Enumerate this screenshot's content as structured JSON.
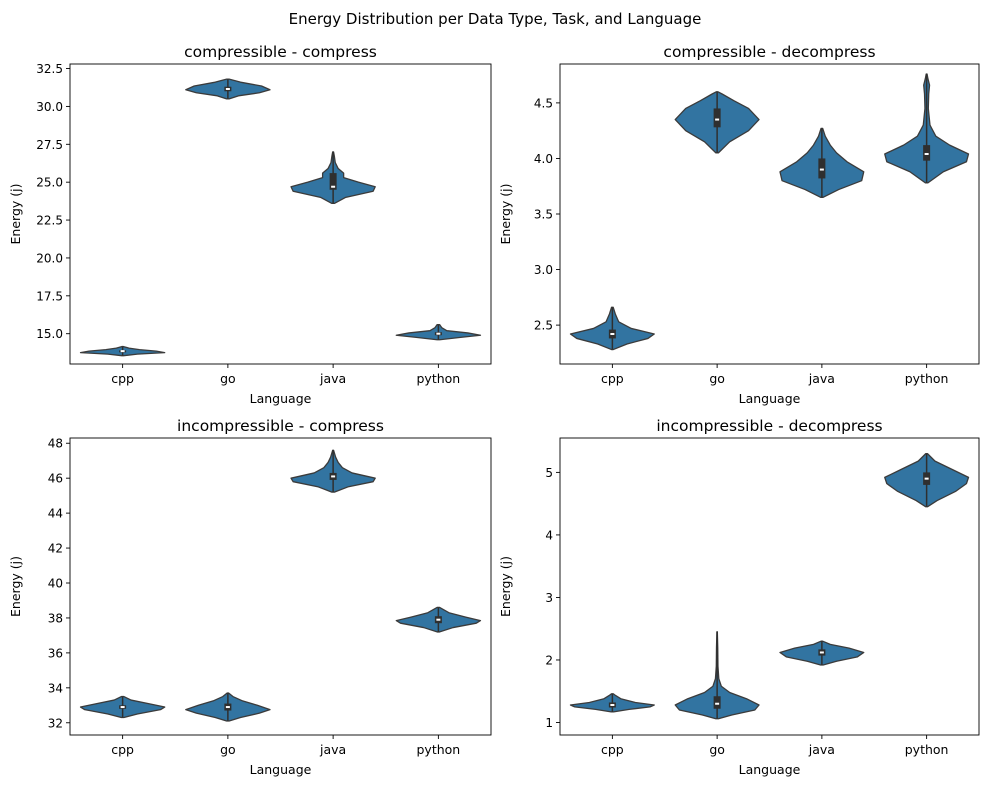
{
  "figure_title": "Energy Distribution per Data Type, Task, and Language",
  "colors": {
    "violin": "#3274a1",
    "edge": "#3b3b3b",
    "box": "#2f2f2f",
    "median": "#ffffff"
  },
  "chart_data": [
    {
      "type": "violin",
      "title": "compressible - compress",
      "xlabel": "Language",
      "ylabel": "Energy (j)",
      "categories": [
        "cpp",
        "go",
        "java",
        "python"
      ],
      "ylim": [
        13.0,
        32.8
      ],
      "yticks": [
        15.0,
        17.5,
        20.0,
        22.5,
        25.0,
        27.5,
        30.0,
        32.5
      ],
      "tick_decimals": 1,
      "series": [
        {
          "name": "cpp",
          "min": 13.55,
          "max": 14.15,
          "median": 13.85,
          "q1": 13.8,
          "q3": 13.9,
          "profile": [
            [
              13.55,
              0.02
            ],
            [
              13.65,
              0.35
            ],
            [
              13.75,
              1.0
            ],
            [
              13.85,
              0.8
            ],
            [
              13.95,
              0.4
            ],
            [
              14.05,
              0.15
            ],
            [
              14.15,
              0.02
            ]
          ]
        },
        {
          "name": "go",
          "min": 30.5,
          "max": 31.8,
          "median": 31.15,
          "q1": 31.0,
          "q3": 31.3,
          "profile": [
            [
              30.5,
              0.03
            ],
            [
              30.7,
              0.25
            ],
            [
              30.9,
              0.75
            ],
            [
              31.1,
              1.0
            ],
            [
              31.35,
              0.8
            ],
            [
              31.6,
              0.3
            ],
            [
              31.8,
              0.03
            ]
          ]
        },
        {
          "name": "java",
          "min": 23.6,
          "max": 27.0,
          "median": 24.7,
          "q1": 24.5,
          "q3": 25.6,
          "profile": [
            [
              23.6,
              0.03
            ],
            [
              24.0,
              0.3
            ],
            [
              24.4,
              0.95
            ],
            [
              24.7,
              1.0
            ],
            [
              25.0,
              0.6
            ],
            [
              25.3,
              0.25
            ],
            [
              25.6,
              0.25
            ],
            [
              25.9,
              0.12
            ],
            [
              26.3,
              0.05
            ],
            [
              26.7,
              0.03
            ],
            [
              27.0,
              0.01
            ]
          ]
        },
        {
          "name": "python",
          "min": 14.6,
          "max": 15.6,
          "median": 15.0,
          "q1": 14.9,
          "q3": 15.1,
          "profile": [
            [
              14.6,
              0.03
            ],
            [
              14.75,
              0.5
            ],
            [
              14.9,
              1.0
            ],
            [
              15.05,
              0.7
            ],
            [
              15.2,
              0.2
            ],
            [
              15.4,
              0.08
            ],
            [
              15.6,
              0.03
            ]
          ]
        }
      ]
    },
    {
      "type": "violin",
      "title": "compressible - decompress",
      "xlabel": "Language",
      "ylabel": "Energy (j)",
      "categories": [
        "cpp",
        "go",
        "java",
        "python"
      ],
      "ylim": [
        2.15,
        4.85
      ],
      "yticks": [
        2.5,
        3.0,
        3.5,
        4.0,
        4.5
      ],
      "tick_decimals": 1,
      "series": [
        {
          "name": "cpp",
          "min": 2.28,
          "max": 2.66,
          "median": 2.42,
          "q1": 2.38,
          "q3": 2.46,
          "profile": [
            [
              2.28,
              0.02
            ],
            [
              2.33,
              0.35
            ],
            [
              2.38,
              0.85
            ],
            [
              2.42,
              1.0
            ],
            [
              2.47,
              0.45
            ],
            [
              2.53,
              0.15
            ],
            [
              2.6,
              0.07
            ],
            [
              2.66,
              0.02
            ]
          ]
        },
        {
          "name": "go",
          "min": 4.05,
          "max": 4.6,
          "median": 4.35,
          "q1": 4.28,
          "q3": 4.45,
          "profile": [
            [
              4.05,
              0.03
            ],
            [
              4.15,
              0.3
            ],
            [
              4.25,
              0.75
            ],
            [
              4.35,
              1.0
            ],
            [
              4.45,
              0.75
            ],
            [
              4.52,
              0.4
            ],
            [
              4.58,
              0.12
            ],
            [
              4.6,
              0.02
            ]
          ]
        },
        {
          "name": "java",
          "min": 3.65,
          "max": 4.27,
          "median": 3.9,
          "q1": 3.82,
          "q3": 4.0,
          "profile": [
            [
              3.65,
              0.03
            ],
            [
              3.72,
              0.4
            ],
            [
              3.8,
              0.95
            ],
            [
              3.88,
              1.0
            ],
            [
              3.97,
              0.6
            ],
            [
              4.05,
              0.35
            ],
            [
              4.12,
              0.2
            ],
            [
              4.2,
              0.08
            ],
            [
              4.27,
              0.02
            ]
          ]
        },
        {
          "name": "python",
          "min": 3.78,
          "max": 4.76,
          "median": 4.04,
          "q1": 3.98,
          "q3": 4.12,
          "profile": [
            [
              3.78,
              0.03
            ],
            [
              3.88,
              0.4
            ],
            [
              3.97,
              0.95
            ],
            [
              4.04,
              1.0
            ],
            [
              4.12,
              0.55
            ],
            [
              4.2,
              0.22
            ],
            [
              4.3,
              0.08
            ],
            [
              4.45,
              0.04
            ],
            [
              4.58,
              0.05
            ],
            [
              4.66,
              0.07
            ],
            [
              4.72,
              0.03
            ],
            [
              4.76,
              0.01
            ]
          ]
        }
      ]
    },
    {
      "type": "violin",
      "title": "incompressible - compress",
      "xlabel": "Language",
      "ylabel": "Energy (j)",
      "categories": [
        "cpp",
        "go",
        "java",
        "python"
      ],
      "ylim": [
        31.3,
        48.3
      ],
      "yticks": [
        32,
        34,
        36,
        38,
        40,
        42,
        44,
        46,
        48
      ],
      "tick_decimals": 0,
      "series": [
        {
          "name": "cpp",
          "min": 32.3,
          "max": 33.5,
          "median": 32.9,
          "q1": 32.8,
          "q3": 33.0,
          "profile": [
            [
              32.3,
              0.03
            ],
            [
              32.5,
              0.35
            ],
            [
              32.75,
              0.9
            ],
            [
              32.9,
              1.0
            ],
            [
              33.1,
              0.6
            ],
            [
              33.3,
              0.2
            ],
            [
              33.5,
              0.03
            ]
          ]
        },
        {
          "name": "go",
          "min": 32.1,
          "max": 33.7,
          "median": 32.9,
          "q1": 32.7,
          "q3": 33.1,
          "profile": [
            [
              32.1,
              0.03
            ],
            [
              32.3,
              0.3
            ],
            [
              32.55,
              0.75
            ],
            [
              32.75,
              1.0
            ],
            [
              33.0,
              0.7
            ],
            [
              33.25,
              0.35
            ],
            [
              33.5,
              0.12
            ],
            [
              33.7,
              0.02
            ]
          ]
        },
        {
          "name": "java",
          "min": 45.2,
          "max": 47.6,
          "median": 46.1,
          "q1": 45.9,
          "q3": 46.3,
          "profile": [
            [
              45.2,
              0.03
            ],
            [
              45.5,
              0.35
            ],
            [
              45.8,
              0.95
            ],
            [
              46.0,
              1.0
            ],
            [
              46.3,
              0.45
            ],
            [
              46.6,
              0.22
            ],
            [
              46.9,
              0.12
            ],
            [
              47.2,
              0.06
            ],
            [
              47.6,
              0.01
            ]
          ]
        },
        {
          "name": "python",
          "min": 37.2,
          "max": 38.6,
          "median": 37.9,
          "q1": 37.7,
          "q3": 38.1,
          "profile": [
            [
              37.2,
              0.03
            ],
            [
              37.45,
              0.35
            ],
            [
              37.7,
              0.9
            ],
            [
              37.85,
              1.0
            ],
            [
              38.05,
              0.65
            ],
            [
              38.3,
              0.25
            ],
            [
              38.6,
              0.03
            ]
          ]
        }
      ]
    },
    {
      "type": "violin",
      "title": "incompressible - decompress",
      "xlabel": "Language",
      "ylabel": "Energy (j)",
      "categories": [
        "cpp",
        "go",
        "java",
        "python"
      ],
      "ylim": [
        0.8,
        5.55
      ],
      "yticks": [
        1,
        2,
        3,
        4,
        5
      ],
      "tick_decimals": 0,
      "series": [
        {
          "name": "cpp",
          "min": 1.17,
          "max": 1.46,
          "median": 1.28,
          "q1": 1.24,
          "q3": 1.32,
          "profile": [
            [
              1.17,
              0.03
            ],
            [
              1.21,
              0.4
            ],
            [
              1.25,
              0.9
            ],
            [
              1.28,
              1.0
            ],
            [
              1.32,
              0.55
            ],
            [
              1.38,
              0.2
            ],
            [
              1.43,
              0.08
            ],
            [
              1.46,
              0.02
            ]
          ]
        },
        {
          "name": "go",
          "min": 1.06,
          "max": 2.45,
          "median": 1.3,
          "q1": 1.22,
          "q3": 1.42,
          "profile": [
            [
              1.06,
              0.03
            ],
            [
              1.12,
              0.35
            ],
            [
              1.2,
              0.9
            ],
            [
              1.28,
              1.0
            ],
            [
              1.38,
              0.7
            ],
            [
              1.48,
              0.3
            ],
            [
              1.58,
              0.1
            ],
            [
              1.7,
              0.04
            ],
            [
              1.9,
              0.02
            ],
            [
              2.2,
              0.015
            ],
            [
              2.45,
              0.005
            ]
          ]
        },
        {
          "name": "java",
          "min": 1.92,
          "max": 2.3,
          "median": 2.12,
          "q1": 2.07,
          "q3": 2.17,
          "profile": [
            [
              1.92,
              0.03
            ],
            [
              1.98,
              0.35
            ],
            [
              2.05,
              0.85
            ],
            [
              2.12,
              1.0
            ],
            [
              2.19,
              0.65
            ],
            [
              2.25,
              0.2
            ],
            [
              2.3,
              0.02
            ]
          ]
        },
        {
          "name": "python",
          "min": 4.45,
          "max": 5.3,
          "median": 4.9,
          "q1": 4.8,
          "q3": 5.0,
          "profile": [
            [
              4.45,
              0.02
            ],
            [
              4.55,
              0.25
            ],
            [
              4.7,
              0.7
            ],
            [
              4.82,
              0.95
            ],
            [
              4.92,
              1.0
            ],
            [
              5.05,
              0.6
            ],
            [
              5.18,
              0.2
            ],
            [
              5.3,
              0.02
            ]
          ]
        }
      ]
    }
  ]
}
